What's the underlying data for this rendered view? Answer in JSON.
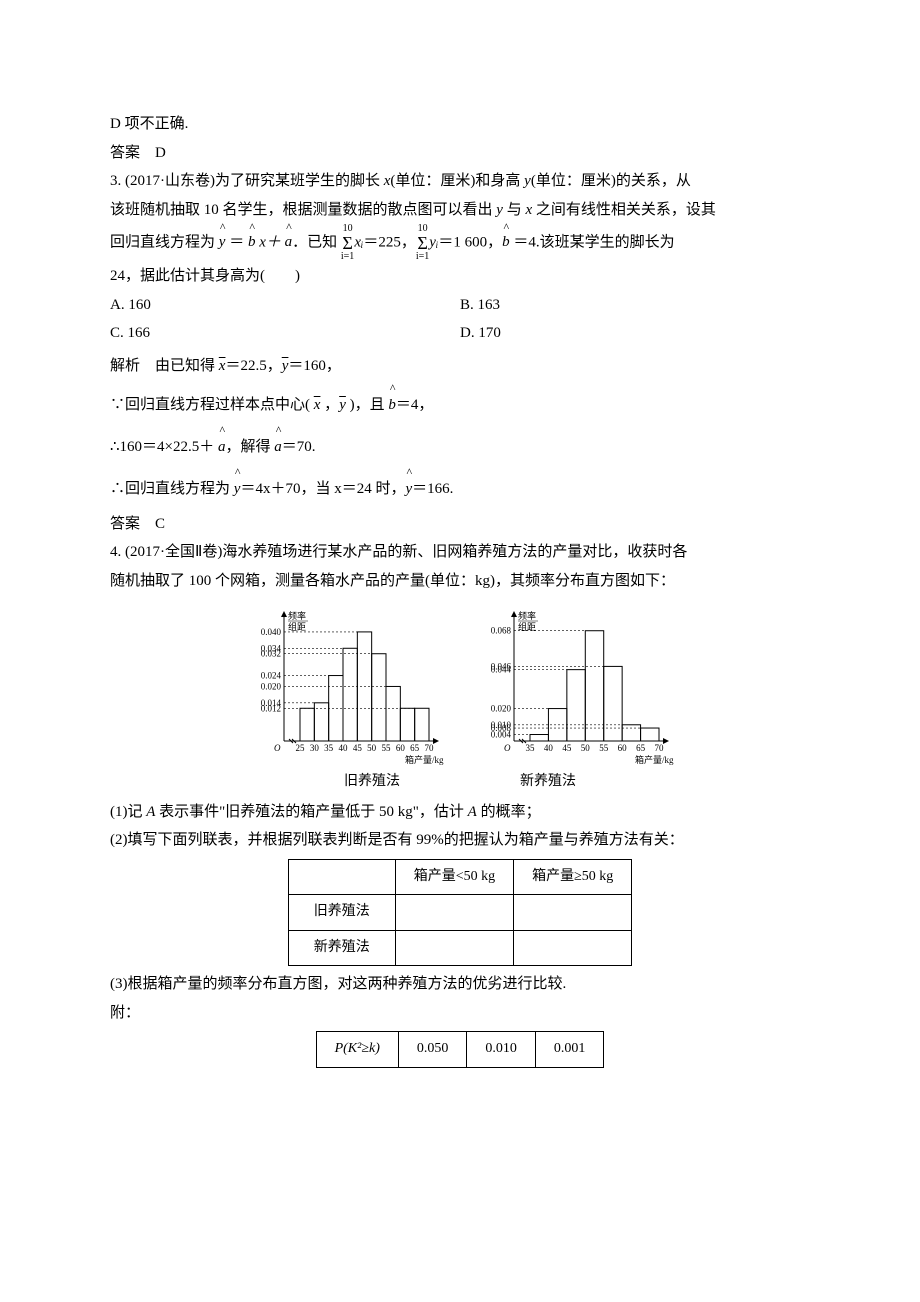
{
  "doc": {
    "line_d_wrong": "D 项不正确.",
    "ans_label": "答案",
    "ans_d": "D",
    "ans_c": "C",
    "q3": {
      "head": "3. (2017·山东卷)为了研究某班学生的脚长 ",
      "x": "x",
      "unit1": "(单位：厘米)和身高 ",
      "y": "y",
      "unit2": "(单位：厘米)的关系，从",
      "line2": "该班随机抽取 10 名学生，根据测量数据的散点图可以看出 ",
      "line2b": " 与 ",
      "line2c": " 之间有线性相关关系，设其",
      "line3a": "回归直线方程为 ",
      "eq_y": "y",
      "eq_eq": " ＝ ",
      "eq_b": "b",
      "eq_x": " x＋ ",
      "eq_a": "a",
      "line3b": "．已知 ",
      "sum_top": "10",
      "sum_bot": "i=1",
      "sum_x": "xᵢ",
      "sum_xv": "＝225，",
      "sum_y": "yᵢ",
      "sum_yv": "＝1 600，",
      "bhat": "b",
      "bval": " ＝4.该班某学生的脚长为",
      "line4": "24，据此估计其身高为(　　)",
      "optA": "A. 160",
      "optB": "B. 163",
      "optC": "C. 166",
      "optD": "D. 170",
      "sol_label": "解析",
      "sol1a": "由已知得 ",
      "xbar": "x",
      "sol1b": "＝22.5，",
      "ybar": "y",
      "sol1c": "＝160，",
      "sol2a": "∵回归直线方程过样本点中心( ",
      "sol2b": " ，",
      "sol2c": " )，且 ",
      "sol2d": "＝4，",
      "sol3a": "∴160＝4×22.5＋ ",
      "sol3b": "，解得 ",
      "sol3c": "＝70.",
      "sol4a": "∴回归直线方程为 ",
      "sol4b": "＝4x＋70，当 x＝24 时，",
      "sol4c": "＝166."
    },
    "q4": {
      "head": "4. (2017·全国Ⅱ卷)海水养殖场进行某水产品的新、旧网箱养殖方法的产量对比，收获时各",
      "line2": "随机抽取了 100 个网箱，测量各箱水产品的产量(单位：kg)，其频率分布直方图如下：",
      "cap_old": "旧养殖法",
      "cap_new": "新养殖法",
      "sub1a": "(1)记 ",
      "A": "A",
      "sub1b": " 表示事件\"旧养殖法的箱产量低于 50 kg\"，估计 ",
      "sub1c": " 的概率；",
      "sub2": "(2)填写下面列联表，并根据列联表判断是否有 99%的把握认为箱产量与养殖方法有关：",
      "th_lt": "箱产量<50 kg",
      "th_ge": "箱产量≥50 kg",
      "row_old": "旧养殖法",
      "row_new": "新养殖法",
      "sub3": "(3)根据箱产量的频率分布直方图，对这两种养殖方法的优劣进行比较.",
      "attach": "附：",
      "pk": "P(K²≥k)",
      "p1": "0.050",
      "p2": "0.010",
      "p3": "0.001"
    },
    "chart_old": {
      "ylabel1": "频率",
      "ylabel2": "组距",
      "xlabel": "箱产量/kg",
      "yticks": [
        "0.012",
        "0.014",
        "0.020",
        "0.024",
        "0.032",
        "0.034",
        "0.040"
      ],
      "yvals": [
        0.012,
        0.014,
        0.02,
        0.024,
        0.032,
        0.034,
        0.04
      ],
      "xticks": [
        "25",
        "30",
        "35",
        "40",
        "45",
        "50",
        "55",
        "60",
        "65",
        "70"
      ],
      "bars": [
        0.012,
        0.014,
        0.024,
        0.034,
        0.04,
        0.032,
        0.02,
        0.012,
        0.012
      ],
      "xstart": 25,
      "xstep": 5,
      "axis_color": "#000000",
      "dash_color": "#000000",
      "bg": "#ffffff",
      "font_size": 9
    },
    "chart_new": {
      "ylabel1": "频率",
      "ylabel2": "组距",
      "xlabel": "箱产量/kg",
      "yticks": [
        "0.004",
        "0.008",
        "0.010",
        "0.020",
        "0.044",
        "0.046",
        "0.068"
      ],
      "yvals": [
        0.004,
        0.008,
        0.01,
        0.02,
        0.044,
        0.046,
        0.068
      ],
      "xticks": [
        "35",
        "40",
        "45",
        "50",
        "55",
        "60",
        "65",
        "70"
      ],
      "bars": [
        0.004,
        0.02,
        0.044,
        0.068,
        0.046,
        0.01,
        0.008
      ],
      "xstart": 35,
      "xstep": 5,
      "axis_color": "#000000",
      "dash_color": "#000000",
      "bg": "#ffffff",
      "font_size": 9
    }
  }
}
